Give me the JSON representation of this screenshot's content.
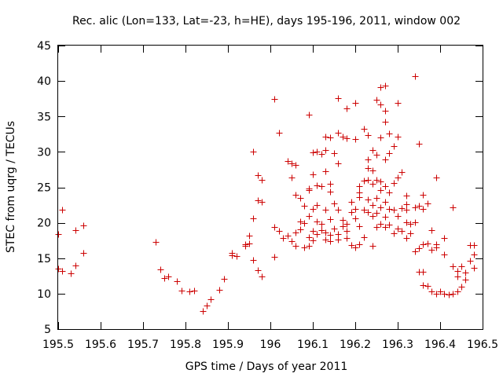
{
  "chart_data": {
    "type": "scatter",
    "title": "Rec. alic (Lon=133, Lat=-23, h=HE), days 195-196, 2011, window 002",
    "xlabel": "GPS time / Days of year 2011",
    "ylabel": "STEC from uqrg / TECUs",
    "xlim": [
      195.5,
      196.5
    ],
    "ylim": [
      5,
      45
    ],
    "xticks": [
      195.5,
      195.6,
      195.7,
      195.8,
      195.9,
      196,
      196.1,
      196.2,
      196.3,
      196.4,
      196.5
    ],
    "xtick_labels": [
      "195.5",
      "195.6",
      "195.7",
      "195.8",
      "195.9",
      "196",
      "196.1",
      "196.2",
      "196.3",
      "196.4",
      "196.5"
    ],
    "yticks": [
      5,
      10,
      15,
      20,
      25,
      30,
      35,
      40,
      45
    ],
    "ytick_labels": [
      "5",
      "10",
      "15",
      "20",
      "25",
      "30",
      "35",
      "40",
      "45"
    ],
    "grid": false,
    "marker": "plus",
    "series": [
      {
        "name": "STEC",
        "color": "#cc0000",
        "points": [
          [
            195.5,
            18.4
          ],
          [
            195.5,
            13.5
          ],
          [
            195.51,
            21.8
          ],
          [
            195.51,
            13.2
          ],
          [
            195.53,
            12.9
          ],
          [
            195.54,
            19.0
          ],
          [
            195.54,
            14.0
          ],
          [
            195.56,
            19.6
          ],
          [
            195.56,
            15.8
          ],
          [
            195.73,
            17.3
          ],
          [
            195.74,
            13.4
          ],
          [
            195.75,
            12.2
          ],
          [
            195.76,
            12.4
          ],
          [
            195.78,
            11.8
          ],
          [
            195.79,
            10.4
          ],
          [
            195.81,
            10.3
          ],
          [
            195.82,
            10.4
          ],
          [
            195.84,
            7.5
          ],
          [
            195.85,
            8.3
          ],
          [
            195.86,
            9.2
          ],
          [
            195.88,
            10.5
          ],
          [
            195.89,
            12.1
          ],
          [
            195.91,
            15.4
          ],
          [
            195.91,
            15.8
          ],
          [
            195.92,
            15.3
          ],
          [
            195.94,
            17.0
          ],
          [
            195.94,
            16.8
          ],
          [
            195.95,
            18.2
          ],
          [
            195.95,
            17.1
          ],
          [
            195.96,
            30.0
          ],
          [
            195.96,
            20.6
          ],
          [
            195.96,
            14.7
          ],
          [
            195.97,
            26.7
          ],
          [
            195.97,
            23.2
          ],
          [
            195.97,
            13.3
          ],
          [
            195.98,
            26.0
          ],
          [
            195.98,
            23.0
          ],
          [
            195.98,
            12.4
          ],
          [
            196.01,
            37.5
          ],
          [
            196.01,
            19.4
          ],
          [
            196.01,
            15.2
          ],
          [
            196.02,
            32.7
          ],
          [
            196.02,
            18.8
          ],
          [
            196.03,
            17.9
          ],
          [
            196.04,
            28.7
          ],
          [
            196.04,
            18.2
          ],
          [
            196.05,
            28.4
          ],
          [
            196.05,
            26.4
          ],
          [
            196.05,
            17.4
          ],
          [
            196.06,
            28.2
          ],
          [
            196.06,
            24.0
          ],
          [
            196.06,
            18.6
          ],
          [
            196.06,
            16.7
          ],
          [
            196.07,
            23.5
          ],
          [
            196.07,
            20.2
          ],
          [
            196.07,
            19.1
          ],
          [
            196.08,
            22.4
          ],
          [
            196.08,
            20.0
          ],
          [
            196.08,
            16.5
          ],
          [
            196.09,
            35.3
          ],
          [
            196.09,
            24.8
          ],
          [
            196.09,
            24.6
          ],
          [
            196.09,
            21.0
          ],
          [
            196.09,
            18.0
          ],
          [
            196.09,
            16.8
          ],
          [
            196.1,
            29.9
          ],
          [
            196.1,
            26.8
          ],
          [
            196.1,
            22.0
          ],
          [
            196.1,
            18.8
          ],
          [
            196.1,
            17.5
          ],
          [
            196.11,
            30.0
          ],
          [
            196.11,
            25.3
          ],
          [
            196.11,
            22.5
          ],
          [
            196.11,
            20.2
          ],
          [
            196.11,
            18.4
          ],
          [
            196.12,
            29.7
          ],
          [
            196.12,
            25.2
          ],
          [
            196.12,
            19.9
          ],
          [
            196.12,
            19.0
          ],
          [
            196.13,
            32.2
          ],
          [
            196.13,
            30.3
          ],
          [
            196.13,
            27.3
          ],
          [
            196.13,
            21.8
          ],
          [
            196.13,
            18.6
          ],
          [
            196.13,
            17.6
          ],
          [
            196.14,
            32.0
          ],
          [
            196.14,
            25.5
          ],
          [
            196.14,
            24.4
          ],
          [
            196.14,
            20.5
          ],
          [
            196.14,
            18.3
          ],
          [
            196.14,
            17.4
          ],
          [
            196.15,
            29.8
          ],
          [
            196.15,
            22.7
          ],
          [
            196.15,
            19.2
          ],
          [
            196.16,
            37.6
          ],
          [
            196.16,
            32.7
          ],
          [
            196.16,
            28.4
          ],
          [
            196.16,
            21.8
          ],
          [
            196.16,
            18.4
          ],
          [
            196.16,
            17.6
          ],
          [
            196.17,
            32.2
          ],
          [
            196.17,
            20.4
          ],
          [
            196.17,
            19.5
          ],
          [
            196.18,
            36.1
          ],
          [
            196.18,
            31.9
          ],
          [
            196.18,
            19.8
          ],
          [
            196.18,
            18.8
          ],
          [
            196.18,
            17.8
          ],
          [
            196.19,
            23.0
          ],
          [
            196.19,
            21.5
          ],
          [
            196.19,
            16.9
          ],
          [
            196.2,
            36.9
          ],
          [
            196.2,
            31.8
          ],
          [
            196.2,
            22.0
          ],
          [
            196.2,
            20.6
          ],
          [
            196.2,
            16.5
          ],
          [
            196.21,
            25.2
          ],
          [
            196.21,
            24.3
          ],
          [
            196.21,
            23.6
          ],
          [
            196.21,
            19.5
          ],
          [
            196.21,
            17.0
          ],
          [
            196.22,
            33.3
          ],
          [
            196.22,
            25.9
          ],
          [
            196.22,
            21.8
          ],
          [
            196.22,
            18.0
          ],
          [
            196.23,
            32.4
          ],
          [
            196.23,
            28.9
          ],
          [
            196.23,
            27.7
          ],
          [
            196.23,
            26.1
          ],
          [
            196.23,
            23.3
          ],
          [
            196.23,
            21.5
          ],
          [
            196.24,
            30.3
          ],
          [
            196.24,
            27.4
          ],
          [
            196.24,
            25.5
          ],
          [
            196.24,
            22.5
          ],
          [
            196.24,
            21.0
          ],
          [
            196.24,
            16.8
          ],
          [
            196.25,
            37.3
          ],
          [
            196.25,
            29.6
          ],
          [
            196.25,
            26.1
          ],
          [
            196.25,
            23.5
          ],
          [
            196.25,
            21.4
          ],
          [
            196.25,
            19.4
          ],
          [
            196.26,
            39.1
          ],
          [
            196.26,
            36.7
          ],
          [
            196.26,
            32.0
          ],
          [
            196.26,
            25.8
          ],
          [
            196.26,
            24.6
          ],
          [
            196.26,
            22.2
          ],
          [
            196.26,
            19.8
          ],
          [
            196.27,
            39.4
          ],
          [
            196.27,
            35.8
          ],
          [
            196.27,
            34.2
          ],
          [
            196.27,
            28.9
          ],
          [
            196.27,
            25.2
          ],
          [
            196.27,
            23.0
          ],
          [
            196.27,
            20.9
          ],
          [
            196.27,
            19.4
          ],
          [
            196.28,
            32.6
          ],
          [
            196.28,
            29.8
          ],
          [
            196.28,
            24.3
          ],
          [
            196.28,
            22.0
          ],
          [
            196.28,
            19.7
          ],
          [
            196.29,
            30.8
          ],
          [
            196.29,
            25.6
          ],
          [
            196.29,
            21.8
          ],
          [
            196.29,
            18.5
          ],
          [
            196.3,
            36.9
          ],
          [
            196.3,
            32.1
          ],
          [
            196.3,
            26.4
          ],
          [
            196.3,
            21.0
          ],
          [
            196.3,
            19.2
          ],
          [
            196.31,
            27.2
          ],
          [
            196.31,
            22.1
          ],
          [
            196.31,
            18.8
          ],
          [
            196.32,
            23.8
          ],
          [
            196.32,
            22.6
          ],
          [
            196.32,
            21.8
          ],
          [
            196.32,
            20.1
          ],
          [
            196.32,
            17.8
          ],
          [
            196.33,
            19.9
          ],
          [
            196.33,
            18.5
          ],
          [
            196.34,
            40.7
          ],
          [
            196.34,
            22.2
          ],
          [
            196.34,
            20.1
          ],
          [
            196.34,
            16.0
          ],
          [
            196.35,
            31.2
          ],
          [
            196.35,
            22.4
          ],
          [
            196.35,
            16.4
          ],
          [
            196.35,
            13.1
          ],
          [
            196.36,
            23.9
          ],
          [
            196.36,
            21.9
          ],
          [
            196.36,
            17.0
          ],
          [
            196.36,
            13.1
          ],
          [
            196.36,
            11.2
          ],
          [
            196.37,
            22.7
          ],
          [
            196.37,
            17.1
          ],
          [
            196.37,
            11.1
          ],
          [
            196.38,
            19.0
          ],
          [
            196.38,
            16.2
          ],
          [
            196.38,
            10.3
          ],
          [
            196.39,
            26.4
          ],
          [
            196.39,
            17.0
          ],
          [
            196.39,
            16.5
          ],
          [
            196.39,
            10.0
          ],
          [
            196.4,
            10.3
          ],
          [
            196.41,
            17.8
          ],
          [
            196.41,
            15.5
          ],
          [
            196.41,
            10.0
          ],
          [
            196.42,
            9.9
          ],
          [
            196.43,
            22.2
          ],
          [
            196.43,
            13.9
          ],
          [
            196.43,
            10.0
          ],
          [
            196.44,
            13.2
          ],
          [
            196.44,
            12.4
          ],
          [
            196.44,
            10.3
          ],
          [
            196.45,
            13.9
          ],
          [
            196.45,
            11.0
          ],
          [
            196.46,
            13.0
          ],
          [
            196.46,
            12.0
          ],
          [
            196.47,
            16.9
          ],
          [
            196.47,
            14.6
          ],
          [
            196.48,
            16.9
          ],
          [
            196.48,
            15.5
          ],
          [
            196.48,
            13.6
          ]
        ]
      }
    ]
  }
}
